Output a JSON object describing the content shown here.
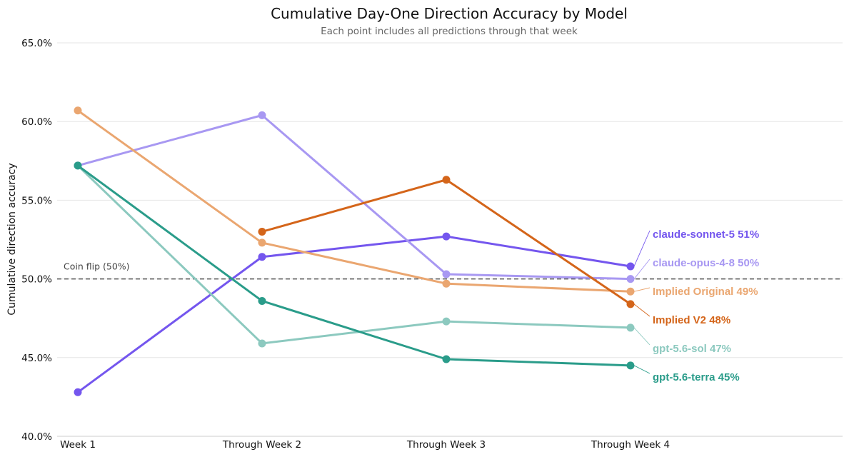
{
  "chart_data": {
    "type": "line",
    "title": "Cumulative Day-One Direction Accuracy by Model",
    "subtitle": "Each point includes all predictions through that week",
    "xlabel": "",
    "ylabel": "Cumulative direction accuracy",
    "categories": [
      "Week 1",
      "Through Week 2",
      "Through Week 3",
      "Through Week 4"
    ],
    "ylim": [
      40.0,
      65.0
    ],
    "yticks": [
      40.0,
      45.0,
      50.0,
      55.0,
      60.0,
      65.0
    ],
    "ytick_labels": [
      "40.0%",
      "45.0%",
      "50.0%",
      "55.0%",
      "60.0%",
      "65.0%"
    ],
    "grid": "horizontal",
    "reference_line": {
      "value": 50.0,
      "label": "Coin flip (50%)"
    },
    "series": [
      {
        "name": "claude-sonnet-5",
        "end_label": "claude-sonnet-5  51%",
        "color": "#7456ee",
        "values": [
          42.8,
          51.4,
          52.7,
          50.8
        ]
      },
      {
        "name": "claude-opus-4-8",
        "end_label": "claude-opus-4-8  50%",
        "color": "#a898f2",
        "values": [
          57.2,
          60.4,
          50.3,
          50.0
        ]
      },
      {
        "name": "Implied Original",
        "end_label": "Implied Original  49%",
        "color": "#eaa670",
        "values": [
          60.7,
          52.3,
          49.7,
          49.2
        ]
      },
      {
        "name": "Implied V2",
        "end_label": "Implied V2  48%",
        "color": "#d4651a",
        "values": [
          null,
          53.0,
          56.3,
          48.4
        ]
      },
      {
        "name": "gpt-5.6-sol",
        "end_label": "gpt-5.6-sol  47%",
        "color": "#8cc9bf",
        "values": [
          57.2,
          45.9,
          47.3,
          46.9
        ]
      },
      {
        "name": "gpt-5.6-terra",
        "end_label": "gpt-5.6-terra  45%",
        "color": "#2a9c8a",
        "values": [
          57.2,
          48.6,
          44.9,
          44.5
        ]
      }
    ]
  }
}
